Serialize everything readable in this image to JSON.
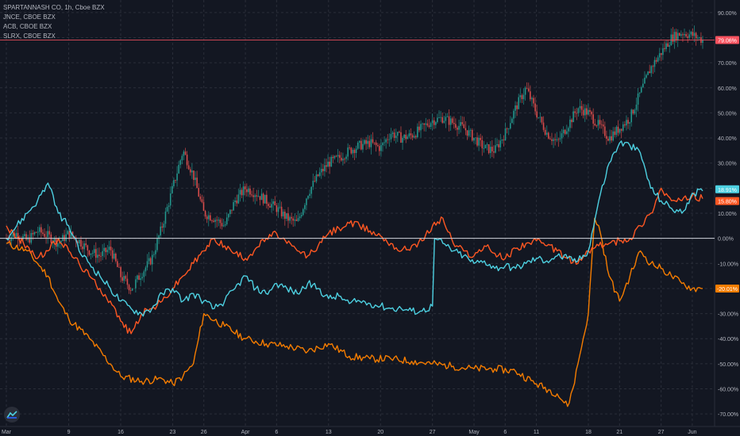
{
  "legend": {
    "main": "SPARTANNASH CO, 1h, Cboe BZX",
    "items": [
      "JNCE, CBOE BZX",
      "ACB, CBOE BZX",
      "SLRX, CBOE BZX"
    ]
  },
  "colors": {
    "background": "#131722",
    "grid": "#2a2e39",
    "axis_text": "#b2b5be",
    "up": "#26a69a",
    "down": "#ef5350",
    "zero_line": "#d1d4dc",
    "hline": "#f7525f",
    "JNCE": "#f57c00",
    "ACB": "#ff5722",
    "SLRX": "#4dd0e1"
  },
  "chart_data": {
    "type": "line",
    "title": "SPARTANNASH CO, 1h, Cboe BZX",
    "y_unit": "%",
    "ylim": [
      -75,
      95
    ],
    "x_ticks": [
      {
        "label": "Mar",
        "t": 0
      },
      {
        "label": "9",
        "t": 6
      },
      {
        "label": "16",
        "t": 11
      },
      {
        "label": "23",
        "t": 16
      },
      {
        "label": "26",
        "t": 19
      },
      {
        "label": "Apr",
        "t": 23
      },
      {
        "label": "6",
        "t": 26
      },
      {
        "label": "13",
        "t": 31
      },
      {
        "label": "20",
        "t": 36
      },
      {
        "label": "27",
        "t": 41
      },
      {
        "label": "May",
        "t": 45
      },
      {
        "label": "6",
        "t": 48
      },
      {
        "label": "11",
        "t": 51
      },
      {
        "label": "18",
        "t": 56
      },
      {
        "label": "21",
        "t": 59
      },
      {
        "label": "27",
        "t": 63
      },
      {
        "label": "Jun",
        "t": 66
      }
    ],
    "y_ticks": [
      90,
      80,
      70,
      60,
      50,
      40,
      30,
      20,
      10,
      0,
      -10,
      -20,
      -30,
      -40,
      -50,
      -60,
      -70
    ],
    "hline": {
      "value": 79.06,
      "label": "79.06%"
    },
    "last_value_labels": [
      {
        "series": "SLRX",
        "label": "18.91%",
        "value": 18.91
      },
      {
        "series": "ACB",
        "label": "15.80%",
        "value": 15.8
      },
      {
        "series": "JNCE",
        "label": "-20.01%",
        "value": -20.01
      }
    ],
    "main_series": {
      "name": "SPARTANNASH CO",
      "t": [
        0,
        1,
        2,
        3,
        4,
        5,
        6,
        7,
        8,
        9,
        10,
        11,
        12,
        13,
        14,
        15,
        16,
        17,
        18,
        19,
        20,
        21,
        22,
        23,
        24,
        25,
        26,
        27,
        28,
        29,
        30,
        31,
        32,
        33,
        34,
        35,
        36,
        37,
        38,
        39,
        40,
        41,
        42,
        43,
        44,
        45,
        46,
        47,
        48,
        49,
        50,
        51,
        52,
        53,
        54,
        55,
        56,
        57,
        58,
        59,
        60,
        61,
        62,
        63,
        64,
        65,
        66,
        67
      ],
      "close": [
        0,
        2,
        -1,
        3,
        1,
        -2,
        2,
        -1,
        -5,
        -7,
        -4,
        -15,
        -20,
        -14,
        -8,
        5,
        20,
        35,
        25,
        10,
        8,
        5,
        15,
        20,
        18,
        15,
        12,
        8,
        6,
        18,
        25,
        30,
        32,
        35,
        37,
        38,
        36,
        42,
        40,
        41,
        44,
        47,
        48,
        46,
        44,
        40,
        36,
        35,
        42,
        52,
        60,
        50,
        42,
        38,
        45,
        52,
        50,
        45,
        40,
        44,
        48,
        58,
        68,
        74,
        80,
        82,
        81,
        79
      ],
      "high": [
        4,
        5,
        3,
        6,
        4,
        2,
        5,
        2,
        -2,
        -4,
        0,
        -10,
        -14,
        -8,
        0,
        15,
        35,
        44,
        35,
        16,
        14,
        10,
        20,
        24,
        22,
        20,
        16,
        13,
        11,
        22,
        28,
        33,
        35,
        38,
        40,
        41,
        39,
        45,
        43,
        44,
        47,
        50,
        51,
        49,
        47,
        43,
        39,
        38,
        45,
        55,
        63,
        56,
        46,
        42,
        49,
        56,
        54,
        49,
        44,
        48,
        52,
        62,
        72,
        80,
        88,
        86,
        85,
        83
      ],
      "low": [
        -5,
        -3,
        -5,
        -1,
        -3,
        -6,
        -2,
        -5,
        -9,
        -11,
        -9,
        -25,
        -28,
        -20,
        -15,
        0,
        10,
        22,
        18,
        5,
        4,
        0,
        10,
        15,
        13,
        10,
        8,
        4,
        2,
        14,
        21,
        26,
        28,
        31,
        33,
        34,
        32,
        38,
        36,
        37,
        40,
        43,
        44,
        42,
        40,
        36,
        32,
        33,
        37,
        47,
        55,
        45,
        38,
        34,
        40,
        48,
        46,
        41,
        36,
        40,
        44,
        52,
        62,
        68,
        72,
        76,
        76,
        75
      ]
    },
    "series": [
      {
        "name": "JNCE",
        "t": [
          0,
          2,
          3,
          4,
          5,
          6,
          8,
          10,
          11,
          13,
          15,
          16,
          17,
          18,
          19,
          21,
          23,
          25,
          27,
          29,
          31,
          33,
          35,
          37,
          39,
          41,
          43,
          45,
          47,
          49,
          51,
          53,
          54,
          54.5,
          55,
          56,
          56.6,
          57,
          58,
          59,
          60,
          61,
          62,
          63,
          64,
          65,
          66,
          67
        ],
        "v": [
          -2,
          -5,
          -10,
          -15,
          -25,
          -32,
          -40,
          -50,
          -55,
          -57,
          -56,
          -58,
          -55,
          -50,
          -30,
          -35,
          -40,
          -42,
          -43,
          -45,
          -42,
          -47,
          -48,
          -48,
          -49,
          -50,
          -51,
          -52,
          -52,
          -53,
          -58,
          -62,
          -67,
          -60,
          -50,
          -30,
          8,
          5,
          -15,
          -25,
          -15,
          -5,
          -10,
          -12,
          -15,
          -18,
          -20,
          -20
        ]
      },
      {
        "name": "ACB",
        "t": [
          0,
          1,
          2,
          3,
          4,
          5,
          6,
          7,
          8,
          9,
          10,
          11,
          12,
          13,
          14,
          15,
          16,
          17,
          18,
          19,
          20,
          21,
          22,
          23,
          24,
          25,
          26,
          27,
          28,
          29,
          30,
          31,
          32,
          33,
          34,
          35,
          36,
          37,
          38,
          39,
          40,
          41,
          42,
          43,
          44,
          45,
          46,
          47,
          48,
          49,
          50,
          51,
          52,
          53,
          54,
          55,
          56,
          57,
          58,
          59,
          60,
          61,
          62,
          63,
          64,
          65,
          66,
          67
        ],
        "v": [
          5,
          0,
          -3,
          -8,
          -5,
          0,
          -5,
          -10,
          -15,
          -20,
          -25,
          -33,
          -38,
          -30,
          -28,
          -25,
          -20,
          -15,
          -10,
          -5,
          0,
          -3,
          -6,
          -8,
          -4,
          0,
          2,
          -2,
          -5,
          -7,
          -3,
          2,
          4,
          6,
          5,
          3,
          1,
          -2,
          -5,
          -3,
          -1,
          5,
          8,
          -2,
          -5,
          -7,
          -3,
          -6,
          -8,
          -4,
          -2,
          -1,
          -3,
          -5,
          -8,
          -10,
          -5,
          -3,
          -2,
          -1,
          0,
          5,
          10,
          20,
          15,
          15,
          17,
          15.8
        ]
      },
      {
        "name": "SLRX",
        "t": [
          0,
          1,
          2,
          3,
          4,
          5,
          6,
          7,
          8,
          9,
          10,
          11,
          12,
          13,
          14,
          15,
          16,
          17,
          18,
          19,
          20,
          21,
          22,
          23,
          24,
          25,
          26,
          27,
          28,
          29,
          30,
          31,
          32,
          33,
          34,
          35,
          36,
          37,
          38,
          39,
          40,
          41,
          41.2,
          42,
          43,
          44,
          45,
          46,
          47,
          48,
          49,
          50,
          51,
          52,
          53,
          54,
          55,
          56,
          57,
          58,
          59,
          60,
          61,
          62,
          63,
          64,
          65,
          66,
          67
        ],
        "v": [
          0,
          5,
          10,
          15,
          22,
          10,
          5,
          -5,
          -10,
          -15,
          -20,
          -25,
          -28,
          -30,
          -28,
          -22,
          -20,
          -25,
          -22,
          -25,
          -28,
          -25,
          -20,
          -15,
          -20,
          -22,
          -18,
          -20,
          -22,
          -18,
          -20,
          -24,
          -23,
          -26,
          -25,
          -26,
          -27,
          -28,
          -28,
          -29,
          -29,
          -27,
          0,
          -2,
          -5,
          -7,
          -10,
          -9,
          -12,
          -11,
          -12,
          -10,
          -8,
          -9,
          -7,
          -8,
          -9,
          -5,
          15,
          30,
          38,
          37,
          34,
          20,
          15,
          12,
          10,
          18,
          18.91
        ]
      }
    ]
  }
}
